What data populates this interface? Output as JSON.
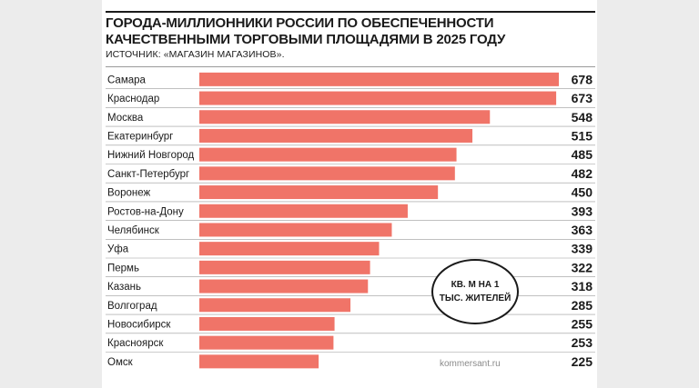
{
  "title": "ГОРОДА-МИЛЛИОННИКИ РОССИИ ПО ОБЕСПЕЧЕННОСТИ КАЧЕСТВЕННЫМИ ТОРГОВЫМИ ПЛОЩАДЯМИ В 2025 ГОДУ",
  "source": "ИСТОЧНИК: «МАГАЗИН МАГАЗИНОВ».",
  "unit_note": "КВ. М НА 1 ТЫС. ЖИТЕЛЕЙ",
  "watermark": "kommersant.ru",
  "colors": {
    "bar": "#f07468",
    "rule": "#1a1a1a",
    "separator": "#9a9a9a",
    "background": "#ffffff",
    "sides": "#ececec"
  },
  "chart_data": {
    "type": "bar",
    "orientation": "horizontal",
    "title": "ГОРОДА-МИЛЛИОННИКИ РОССИИ ПО ОБЕСПЕЧЕННОСТИ КАЧЕСТВЕННЫМИ ТОРГОВЫМИ ПЛОЩАДЯМИ В 2025 ГОДУ",
    "unit": "КВ. М НА 1 ТЫС. ЖИТЕЛЕЙ",
    "categories": [
      "Самара",
      "Краснодар",
      "Москва",
      "Екатеринбург",
      "Нижний Новгород",
      "Санкт-Петербург",
      "Воронеж",
      "Ростов-на-Дону",
      "Челябинск",
      "Уфа",
      "Пермь",
      "Казань",
      "Волгоград",
      "Новосибирск",
      "Красноярск",
      "Омск"
    ],
    "values": [
      678,
      673,
      548,
      515,
      485,
      482,
      450,
      393,
      363,
      339,
      322,
      318,
      285,
      255,
      253,
      225
    ],
    "xlim": [
      0,
      678
    ],
    "grid": false,
    "legend": "none"
  }
}
